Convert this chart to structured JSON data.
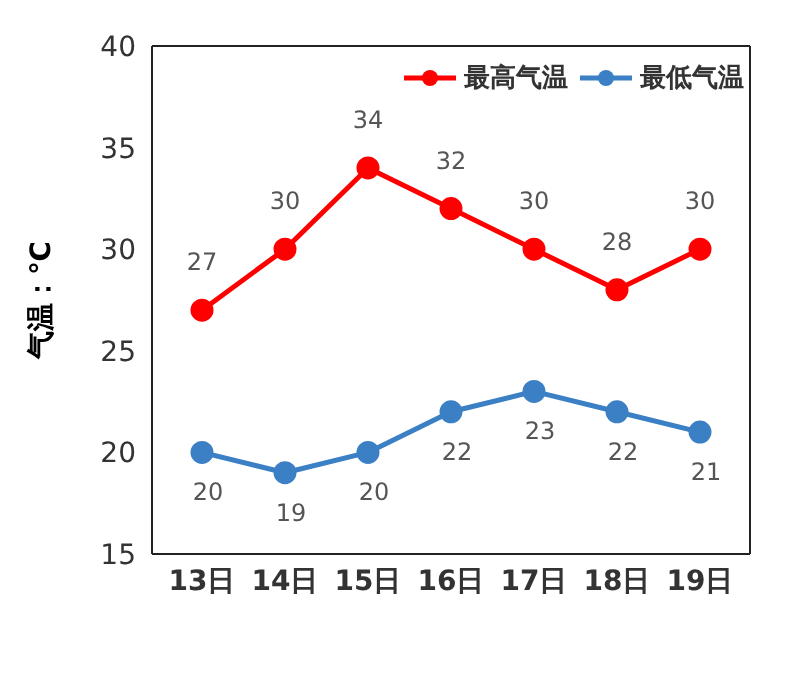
{
  "chart_data": {
    "type": "line",
    "ylabel": "气温：℃",
    "categories": [
      "13日",
      "14日",
      "15日",
      "16日",
      "17日",
      "18日",
      "19日"
    ],
    "series": [
      {
        "name": "最高气温",
        "color": "#ff0000",
        "values": [
          27,
          30,
          34,
          32,
          30,
          28,
          30
        ]
      },
      {
        "name": "最低气温",
        "color": "#3b7fc4",
        "values": [
          20,
          19,
          20,
          22,
          23,
          22,
          21
        ]
      }
    ],
    "ylim": [
      15,
      40
    ],
    "yticks": [
      15,
      20,
      25,
      30,
      35,
      40
    ],
    "grid": false,
    "legend": "top right",
    "marker": "circle",
    "line_style": "solid",
    "data_labels": true
  }
}
